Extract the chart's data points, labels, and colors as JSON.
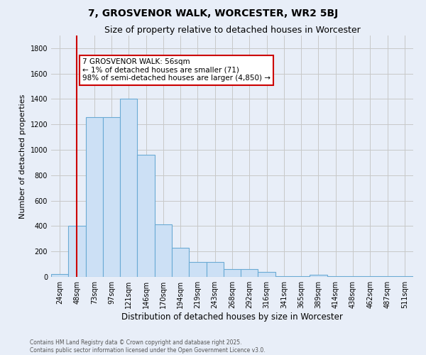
{
  "title": "7, GROSVENOR WALK, WORCESTER, WR2 5BJ",
  "subtitle": "Size of property relative to detached houses in Worcester",
  "xlabel": "Distribution of detached houses by size in Worcester",
  "ylabel": "Number of detached properties",
  "bar_color": "#cce0f5",
  "bar_edge_color": "#6aaad4",
  "bar_edge_width": 0.8,
  "background_color": "#e8eef8",
  "grid_color": "#c8c8c8",
  "categories": [
    "24sqm",
    "48sqm",
    "73sqm",
    "97sqm",
    "121sqm",
    "146sqm",
    "170sqm",
    "194sqm",
    "219sqm",
    "243sqm",
    "268sqm",
    "292sqm",
    "316sqm",
    "341sqm",
    "365sqm",
    "389sqm",
    "414sqm",
    "438sqm",
    "462sqm",
    "487sqm",
    "511sqm"
  ],
  "values": [
    25,
    400,
    1260,
    1260,
    1400,
    960,
    415,
    230,
    120,
    120,
    60,
    60,
    40,
    5,
    5,
    15,
    5,
    5,
    5,
    5,
    5
  ],
  "ylim": [
    0,
    1900
  ],
  "yticks": [
    0,
    200,
    400,
    600,
    800,
    1000,
    1200,
    1400,
    1600,
    1800
  ],
  "vline_x": 1,
  "vline_color": "#cc0000",
  "annotation_text": "7 GROSVENOR WALK: 56sqm\n← 1% of detached houses are smaller (71)\n98% of semi-detached houses are larger (4,850) →",
  "annotation_box_color": "#ffffff",
  "annotation_box_edge_color": "#cc0000",
  "footer_line1": "Contains HM Land Registry data © Crown copyright and database right 2025.",
  "footer_line2": "Contains public sector information licensed under the Open Government Licence v3.0.",
  "title_fontsize": 10,
  "subtitle_fontsize": 9,
  "tick_fontsize": 7,
  "ylabel_fontsize": 8,
  "xlabel_fontsize": 8.5,
  "annotation_fontsize": 7.5
}
